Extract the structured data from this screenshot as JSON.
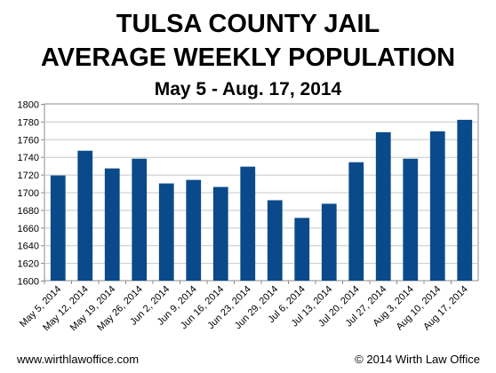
{
  "chart_data": {
    "type": "bar",
    "title_lines": [
      "TULSA COUNTY JAIL",
      "AVERAGE WEEKLY POPULATION"
    ],
    "subtitle": "May 5 - Aug. 17, 2014",
    "categories": [
      "May 5, 2014",
      "May 12, 2014",
      "May 19, 2014",
      "May 26, 2014",
      "Jun 2, 2014",
      "Jun 9, 2014",
      "Jun 16, 2014",
      "Jun 23, 2014",
      "Jun 29, 2014",
      "Jul 6, 2014",
      "Jul 13, 2014",
      "Jul 20, 2014",
      "Jul 27, 2014",
      "Aug 3, 2014",
      "Aug 10, 2014",
      "Aug 17, 2014"
    ],
    "values": [
      1719,
      1747,
      1727,
      1738,
      1710,
      1714,
      1706,
      1729,
      1691,
      1671,
      1687,
      1734,
      1768,
      1738,
      1769,
      1782
    ],
    "ylim": [
      1600,
      1800
    ],
    "yticks": [
      1600,
      1620,
      1640,
      1660,
      1680,
      1700,
      1720,
      1740,
      1760,
      1780,
      1800
    ],
    "grid": true,
    "bar_color": "#0a4a8a"
  },
  "footer": {
    "left": "www.wirthlawoffice.com",
    "right": "© 2014 Wirth Law Office"
  }
}
